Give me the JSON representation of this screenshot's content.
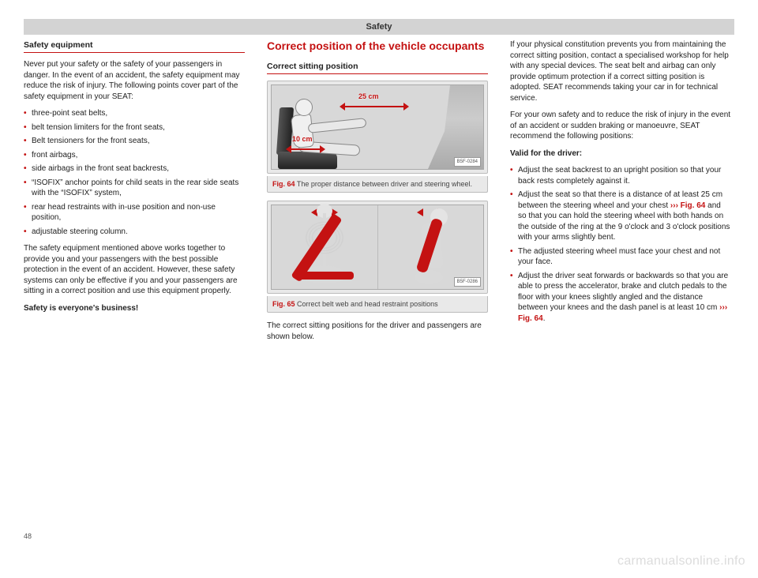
{
  "colors": {
    "accent": "#c41212",
    "header_bg": "#d3d3d3",
    "text": "#222222",
    "figure_bg": "#e9e9e9"
  },
  "typography": {
    "body_pt": 10,
    "heading_pt": 14,
    "subheading_pt": 10.5,
    "caption_pt": 9
  },
  "header": {
    "title": "Safety"
  },
  "col1": {
    "heading": "Safety equipment",
    "intro": "Never put your safety or the safety of your passengers in danger. In the event of an accident, the safety equipment may reduce the risk of injury. The following points cover part of the safety equipment in your SEAT:",
    "bullets": [
      "three-point seat belts,",
      "belt tension limiters for the front seats,",
      "Belt tensioners for the front seats,",
      "front airbags,",
      "side airbags in the front seat backrests,",
      "“ISOFIX” anchor points for child seats in the rear side seats with the “ISOFIX” system,",
      "rear head restraints with in-use position and non-use position,",
      "adjustable steering column."
    ],
    "para2": "The safety equipment mentioned above works together to provide you and your passengers with the best possible protection in the event of an accident. However, these safety systems can only be effective if you and your passengers are sitting in a correct position and use this equipment properly.",
    "bold_line": "Safety is everyone's business!"
  },
  "col2": {
    "section_heading": "Correct position of the vehicle occupants",
    "sub_heading": "Correct sitting position",
    "fig64": {
      "code": "B5F-0284",
      "label": "Fig. 64",
      "caption": "The proper distance between driver and steering wheel.",
      "dim_a": "25 cm",
      "dim_b": "10 cm"
    },
    "fig65": {
      "code": "B5F-0286",
      "label": "Fig. 65",
      "caption": "Correct belt web and head restraint positions"
    },
    "tail": "The correct sitting positions for the driver and passengers are shown below."
  },
  "col3": {
    "para1": "If your physical constitution prevents you from maintaining the correct sitting position, contact a specialised workshop for help with any special devices. The seat belt and airbag can only provide optimum protection if a correct sitting position is adopted. SEAT recommends taking your car in for technical service.",
    "para2": "For your own safety and to reduce the risk of injury in the event of an accident or sudden braking or manoeuvre, SEAT recommend the following positions:",
    "valid_heading": "Valid for the driver:",
    "bullets": [
      "Adjust the seat backrest to an upright position so that your back rests completely against it.",
      "Adjust the seat so that there is a distance of at least 25 cm between the steering wheel and your chest ››› Fig. 64 and so that you can hold the steering wheel with both hands on the outside of the ring at the 9 o'clock and 3 o'clock positions with your arms slightly bent.",
      "The adjusted steering wheel must face your chest and not your face.",
      "Adjust the driver seat forwards or backwards so that you are able to press the accelerator, brake and clutch pedals to the floor with your knees slightly angled and the distance between your knees and the dash panel is at least 10 cm ››› Fig. 64."
    ]
  },
  "page_number": "48",
  "watermark": "carmanualsonline.info"
}
